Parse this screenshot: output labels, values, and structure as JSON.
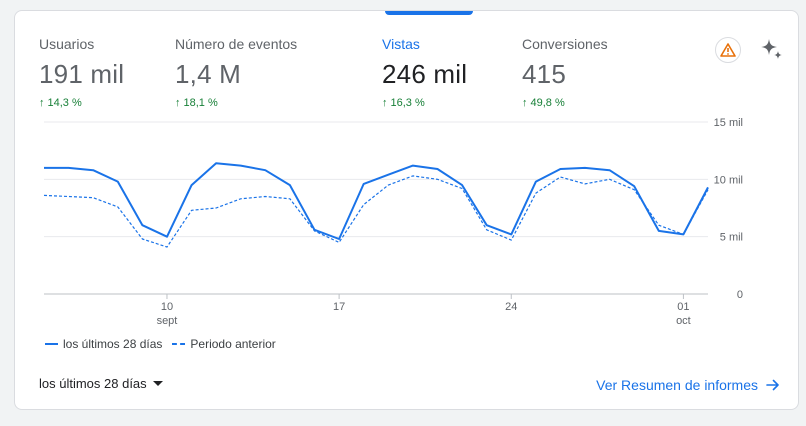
{
  "metrics": [
    {
      "label": "Usuarios",
      "value": "191 mil",
      "change": "14,3 %"
    },
    {
      "label": "Número de eventos",
      "value": "1,4 M",
      "change": "18,1 %"
    },
    {
      "label": "Vistas",
      "value": "246 mil",
      "change": "16,3 %"
    },
    {
      "label": "Conversiones",
      "value": "415",
      "change": "49,8 %"
    }
  ],
  "active_metric": "Vistas",
  "icons": {
    "warning": "warning-triangle-icon",
    "insights": "sparkle-icon",
    "caret": "caret-down-icon",
    "report_arrow": "arrow-right-icon"
  },
  "colors": {
    "accent": "#1a73e8",
    "positive": "#188038",
    "warning": "#e8710a"
  },
  "chart_data": {
    "type": "line",
    "x": [
      "2023-09-05",
      "2023-09-06",
      "2023-09-07",
      "2023-09-08",
      "2023-09-09",
      "2023-09-10",
      "2023-09-11",
      "2023-09-12",
      "2023-09-13",
      "2023-09-14",
      "2023-09-15",
      "2023-09-16",
      "2023-09-17",
      "2023-09-18",
      "2023-09-19",
      "2023-09-20",
      "2023-09-21",
      "2023-09-22",
      "2023-09-23",
      "2023-09-24",
      "2023-09-25",
      "2023-09-26",
      "2023-09-27",
      "2023-09-28",
      "2023-09-29",
      "2023-09-30",
      "2023-10-01",
      "2023-10-02"
    ],
    "series": [
      {
        "name": "los últimos 28 días",
        "style": "solid",
        "values": [
          11.0,
          11.0,
          10.8,
          9.8,
          6.0,
          5.0,
          9.5,
          11.4,
          11.2,
          10.8,
          9.5,
          5.6,
          4.8,
          9.6,
          10.4,
          11.2,
          10.9,
          9.5,
          6.0,
          5.2,
          9.8,
          10.9,
          11.0,
          10.8,
          9.4,
          5.5,
          5.2,
          9.3
        ]
      },
      {
        "name": "Periodo anterior",
        "style": "dashed",
        "values": [
          8.6,
          8.5,
          8.4,
          7.6,
          4.8,
          4.1,
          7.3,
          7.5,
          8.3,
          8.5,
          8.3,
          5.5,
          4.5,
          7.8,
          9.5,
          10.3,
          10.0,
          9.2,
          5.6,
          4.7,
          8.8,
          10.2,
          9.6,
          10.0,
          9.1,
          6.0,
          5.2,
          9.1
        ]
      }
    ],
    "x_ticks": [
      {
        "x": "2023-09-10",
        "label": "10",
        "sublabel": "sept"
      },
      {
        "x": "2023-09-17",
        "label": "17",
        "sublabel": ""
      },
      {
        "x": "2023-09-24",
        "label": "24",
        "sublabel": ""
      },
      {
        "x": "2023-10-01",
        "label": "01",
        "sublabel": "oct"
      }
    ],
    "y_ticks": [
      {
        "value": 15,
        "label": "15 mil"
      },
      {
        "value": 10,
        "label": "10 mil"
      },
      {
        "value": 5,
        "label": "5 mil"
      },
      {
        "value": 0,
        "label": "0"
      }
    ],
    "ylim": [
      0,
      15
    ],
    "grid": true,
    "legend_position": "bottom-left",
    "title": "",
    "xlabel": "",
    "ylabel": ""
  },
  "legend": {
    "current": "los últimos 28 días",
    "previous": "Periodo anterior"
  },
  "footer": {
    "range_label": "los últimos 28 días",
    "report_link": "Ver Resumen de informes"
  }
}
